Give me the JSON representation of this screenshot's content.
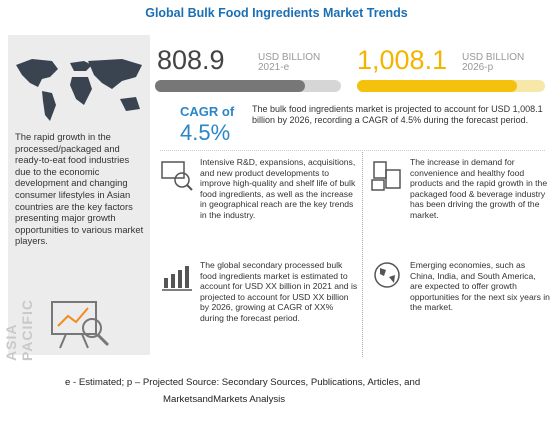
{
  "title": "Global Bulk Food Ingredients Market Trends",
  "left_panel": {
    "text": "The rapid growth in the processed/packaged and ready-to-eat food industries due to the economic development and changing consumer lifestyles in Asian countries are the key factors presenting major growth opportunities to various market players.",
    "region": "ASIA PACIFIC"
  },
  "stats": [
    {
      "value": "808.9",
      "unit": "USD BILLION",
      "year": "2021-e"
    },
    {
      "value": "1,008.1",
      "unit": "USD BILLION",
      "year": "2026-p"
    }
  ],
  "cagr": {
    "label": "CAGR of",
    "value": "4.5%",
    "description": "The bulk food ingredients market is projected to account for USD 1,008.1 billion by 2026, recording a CAGR of 4.5% during the forecast period."
  },
  "items": [
    "Intensive R&D, expansions, acquisitions, and new product developments to improve high-quality and shelf life of bulk food ingredients, as well as the increase in geographical reach are the key trends in the industry.",
    "The increase in demand for convenience and healthy food products and the rapid growth in the packaged food & beverage industry has been driving the growth of the market.",
    "The global secondary processed bulk food ingredients market is estimated to account for USD XX billion in 2021 and is projected to account for USD XX billion by 2026, growing at CAGR of XX% during the forecast period.",
    "Emerging economies, such as China, India, and South America, are expected to offer growth opportunities for the next six years in the market."
  ],
  "footer": [
    "e - Estimated; p – Projected  Source: Secondary Sources, Publications, Articles, and",
    "MarketsandMarkets Analysis"
  ]
}
